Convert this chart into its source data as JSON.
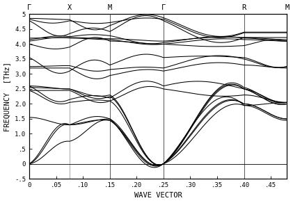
{
  "xlabel": "WAVE VECTOR",
  "ylabel": "FREQUENCY  [THz]",
  "xlim": [
    0.0,
    0.48
  ],
  "ylim": [
    -0.5,
    5.0
  ],
  "xticks": [
    0.0,
    0.05,
    0.1,
    0.15,
    0.2,
    0.25,
    0.3,
    0.35,
    0.4,
    0.45
  ],
  "xtick_labels": [
    "0",
    ".05",
    ".10",
    ".15",
    ".20",
    ".25",
    ".30",
    ".35",
    ".40",
    ".45"
  ],
  "yticks": [
    -0.5,
    0.0,
    0.5,
    1.0,
    1.5,
    2.0,
    2.5,
    3.0,
    3.5,
    4.0,
    4.5,
    5.0
  ],
  "ytick_labels": [
    "-.5",
    "0",
    ".5",
    "1.0",
    "1.5",
    "2.0",
    "2.5",
    "3.0",
    "3.5",
    "4.0",
    "4.5",
    "5"
  ],
  "special_k": [
    0.0,
    0.075,
    0.15,
    0.25,
    0.4,
    0.48
  ],
  "special_k_labels": [
    "Γ",
    "X",
    "M",
    "Γ",
    "R",
    "M"
  ],
  "vline_x": [
    0.075,
    0.15,
    0.25,
    0.4
  ],
  "vline_colors": [
    "#aaaaaa",
    "#555555",
    "#555555",
    "#555555"
  ],
  "background_color": "#ffffff",
  "line_color": "#000000",
  "figsize": [
    4.21,
    2.92
  ],
  "dpi": 100
}
